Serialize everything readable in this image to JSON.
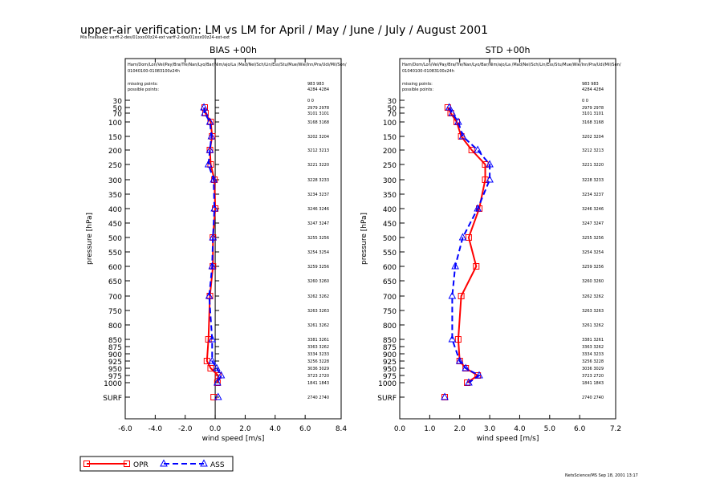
{
  "header": {
    "title": "upper-air verification: LM vs LM for April / May / June / July / August 2001",
    "files": "Mis Invalsack: varff-2-des/01xxx00z24-ext varff-2-des/01xxx00z24-ext-ext"
  },
  "stations": "Ham/Dom/Lon/Vel/Pay/Bra/Tre/Nan/Lyo/Bar/Nim/ajo/La /Mad/Nel/Sch/Lin/Ess/Stu/Mue/Wie/Inn/Pra/Udi/Mil/Son/",
  "period": "01040100-01083100z24h",
  "missing_label": "missing points:",
  "possible_label": "possible points:",
  "missing_values": "983   983",
  "possible_values": "4284  4284",
  "ylabel": "pressure  [hPa]",
  "xlabel": "wind speed  [m/s]",
  "levels": [
    "30",
    "50",
    "70",
    "100",
    "150",
    "200",
    "250",
    "300",
    "350",
    "400",
    "450",
    "500",
    "550",
    "600",
    "650",
    "700",
    "750",
    "800",
    "850",
    "875",
    "900",
    "925",
    "950",
    "975",
    "1000",
    "SURF"
  ],
  "counts": [
    {
      "level": "30",
      "text": "0     0"
    },
    {
      "level": "50",
      "text": "2979  2978"
    },
    {
      "level": "70",
      "text": "3101  3101"
    },
    {
      "level": "100",
      "text": "3168  3168"
    },
    {
      "level": "150",
      "text": "3202  3204"
    },
    {
      "level": "200",
      "text": "3212  3213"
    },
    {
      "level": "250",
      "text": "3221  3220"
    },
    {
      "level": "300",
      "text": "3228  3233"
    },
    {
      "level": "350",
      "text": "3234  3237"
    },
    {
      "level": "400",
      "text": "3246  3246"
    },
    {
      "level": "450",
      "text": "3247  3247"
    },
    {
      "level": "500",
      "text": "3255  3256"
    },
    {
      "level": "550",
      "text": "3254  3254"
    },
    {
      "level": "600",
      "text": "3259  3256"
    },
    {
      "level": "650",
      "text": "3260  3260"
    },
    {
      "level": "700",
      "text": "3262  3262"
    },
    {
      "level": "750",
      "text": "3263  3263"
    },
    {
      "level": "800",
      "text": "3261  3262"
    },
    {
      "level": "850",
      "text": "3381  3261"
    },
    {
      "level": "875",
      "text": "3363  3262"
    },
    {
      "level": "900",
      "text": "3334  3233"
    },
    {
      "level": "925",
      "text": "3256  3228"
    },
    {
      "level": "950",
      "text": "3036  3029"
    },
    {
      "level": "975",
      "text": "3723  2720"
    },
    {
      "level": "1000",
      "text": "1841  1843"
    },
    {
      "level": "SURF",
      "text": "2740  2740"
    }
  ],
  "chart_data": [
    {
      "type": "line",
      "title": "BIAS      +00h",
      "xlabel": "wind speed  [m/s]",
      "ylabel": "pressure  [hPa]",
      "xlim": [
        -6.0,
        8.4
      ],
      "xticks": [
        "-6.0",
        "-4.0",
        "-2.0",
        "0.0",
        "2.0",
        "4.0",
        "6.0",
        "8.4"
      ],
      "zero_line": true,
      "series": [
        {
          "name": "OPR",
          "color": "#ff0000",
          "marker": "square",
          "dash": "solid",
          "points": [
            {
              "level": "50",
              "value": -0.7
            },
            {
              "level": "70",
              "value": -0.65
            },
            {
              "level": "100",
              "value": -0.3
            },
            {
              "level": "150",
              "value": -0.2
            },
            {
              "level": "200",
              "value": -0.35
            },
            {
              "level": "250",
              "value": -0.3
            },
            {
              "level": "300",
              "value": -0.05
            },
            {
              "level": "400",
              "value": 0.0
            },
            {
              "level": "500",
              "value": -0.15
            },
            {
              "level": "600",
              "value": -0.15
            },
            {
              "level": "700",
              "value": -0.35
            },
            {
              "level": "850",
              "value": -0.45
            },
            {
              "level": "925",
              "value": -0.55
            },
            {
              "level": "950",
              "value": -0.3
            },
            {
              "level": "975",
              "value": 0.2
            },
            {
              "level": "1000",
              "value": 0.15
            },
            {
              "level": "SURF",
              "value": -0.1
            }
          ]
        },
        {
          "name": "ASS",
          "color": "#0000ff",
          "marker": "triangle",
          "dash": "dashed",
          "points": [
            {
              "level": "50",
              "value": -0.75
            },
            {
              "level": "70",
              "value": -0.7
            },
            {
              "level": "100",
              "value": -0.35
            },
            {
              "level": "150",
              "value": -0.25
            },
            {
              "level": "200",
              "value": -0.35
            },
            {
              "level": "250",
              "value": -0.45
            },
            {
              "level": "300",
              "value": -0.1
            },
            {
              "level": "400",
              "value": -0.05
            },
            {
              "level": "500",
              "value": -0.15
            },
            {
              "level": "600",
              "value": -0.2
            },
            {
              "level": "700",
              "value": -0.4
            },
            {
              "level": "850",
              "value": -0.2
            },
            {
              "level": "925",
              "value": -0.2
            },
            {
              "level": "950",
              "value": 0.1
            },
            {
              "level": "975",
              "value": 0.4
            },
            {
              "level": "1000",
              "value": 0.15
            },
            {
              "level": "SURF",
              "value": 0.2
            }
          ]
        }
      ]
    },
    {
      "type": "line",
      "title": "STD      +00h",
      "xlabel": "wind speed  [m/s]",
      "ylabel": "pressure  [hPa]",
      "xlim": [
        0.0,
        7.2
      ],
      "xticks": [
        "0.0",
        "1.0",
        "2.0",
        "3.0",
        "4.0",
        "5.0",
        "6.0",
        "7.2"
      ],
      "zero_line": false,
      "series": [
        {
          "name": "OPR",
          "color": "#ff0000",
          "marker": "square",
          "dash": "solid",
          "points": [
            {
              "level": "50",
              "value": 1.6
            },
            {
              "level": "70",
              "value": 1.7
            },
            {
              "level": "100",
              "value": 1.9
            },
            {
              "level": "150",
              "value": 2.05
            },
            {
              "level": "200",
              "value": 2.4
            },
            {
              "level": "250",
              "value": 2.85
            },
            {
              "level": "300",
              "value": 2.85
            },
            {
              "level": "400",
              "value": 2.65
            },
            {
              "level": "500",
              "value": 2.3
            },
            {
              "level": "600",
              "value": 2.55
            },
            {
              "level": "700",
              "value": 2.05
            },
            {
              "level": "850",
              "value": 1.95
            },
            {
              "level": "925",
              "value": 2.0
            },
            {
              "level": "950",
              "value": 2.2
            },
            {
              "level": "975",
              "value": 2.6
            },
            {
              "level": "1000",
              "value": 2.25
            },
            {
              "level": "SURF",
              "value": 1.5
            }
          ]
        },
        {
          "name": "ASS",
          "color": "#0000ff",
          "marker": "triangle",
          "dash": "dashed",
          "points": [
            {
              "level": "50",
              "value": 1.65
            },
            {
              "level": "70",
              "value": 1.75
            },
            {
              "level": "100",
              "value": 1.95
            },
            {
              "level": "150",
              "value": 2.1
            },
            {
              "level": "200",
              "value": 2.6
            },
            {
              "level": "250",
              "value": 3.0
            },
            {
              "level": "300",
              "value": 3.0
            },
            {
              "level": "400",
              "value": 2.6
            },
            {
              "level": "500",
              "value": 2.1
            },
            {
              "level": "600",
              "value": 1.85
            },
            {
              "level": "700",
              "value": 1.75
            },
            {
              "level": "850",
              "value": 1.75
            },
            {
              "level": "925",
              "value": 2.0
            },
            {
              "level": "950",
              "value": 2.2
            },
            {
              "level": "975",
              "value": 2.65
            },
            {
              "level": "1000",
              "value": 2.3
            },
            {
              "level": "SURF",
              "value": 1.5
            }
          ]
        }
      ]
    }
  ],
  "legend": [
    {
      "name": "OPR",
      "color": "#ff0000",
      "marker": "square",
      "dash": "solid"
    },
    {
      "name": "ASS",
      "color": "#0000ff",
      "marker": "triangle",
      "dash": "dashed"
    }
  ],
  "footer": "NetsScience/MS Sep 18, 2001 13:17"
}
